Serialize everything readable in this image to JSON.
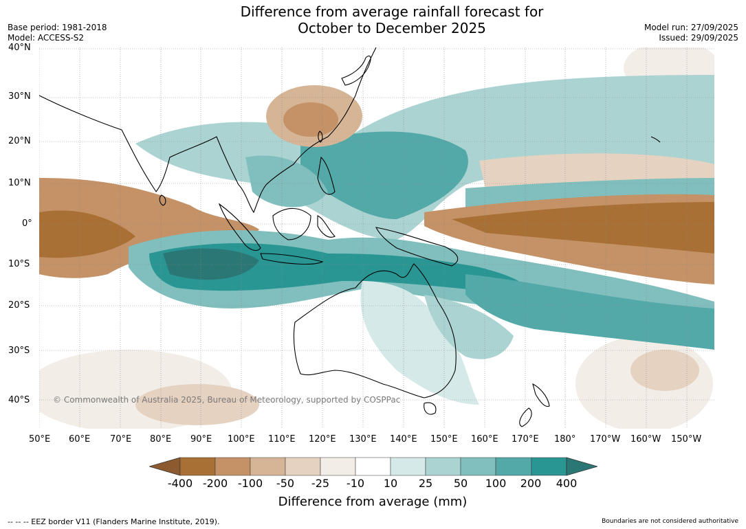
{
  "title": {
    "line1": "Difference from average rainfall forecast for",
    "line2": "October to December 2025"
  },
  "meta": {
    "base_period": "Base period: 1981-2018",
    "model": "Model: ACCESS-S2",
    "model_run": "Model run: 27/09/2025",
    "issued": "Issued: 29/09/2025"
  },
  "map": {
    "copyright": "© Commonwealth of Australia 2025, Bureau of Meteorology, supported by COSPPac",
    "lat_labels": [
      "40°N",
      "30°N",
      "20°N",
      "10°N",
      "0°",
      "10°S",
      "20°S",
      "30°S",
      "40°S"
    ],
    "lon_labels": [
      "50°E",
      "60°E",
      "70°E",
      "80°E",
      "90°E",
      "100°E",
      "110°E",
      "120°E",
      "130°E",
      "140°E",
      "150°E",
      "160°E",
      "170°E",
      "180°",
      "170°W",
      "160°W",
      "150°W"
    ],
    "colors": {
      "dry_extreme": "#8c5a2e",
      "dry_strong": "#a97036",
      "dry_mid": "#c49266",
      "dry_light": "#d5b596",
      "dry_faint": "#e6d2c1",
      "dry_trace": "#f3ede7",
      "neutral": "#ffffff",
      "wet_trace": "#d5e9e8",
      "wet_faint": "#abd3d1",
      "wet_light": "#80bfbd",
      "wet_mid": "#53a9a8",
      "wet_strong": "#2a9694",
      "wet_extreme": "#2b7775",
      "coast": "#000000",
      "border": "#888888"
    }
  },
  "colorbar": {
    "labels": [
      "-400",
      "-200",
      "-100",
      "-50",
      "-25",
      "-10",
      "10",
      "25",
      "50",
      "100",
      "200",
      "400"
    ],
    "title": "Difference from average (mm)"
  },
  "footer": {
    "left": "--  --  -- EEZ border V11 (Flanders Marine Institute, 2019).",
    "right": "Boundaries are not considered authoritative"
  }
}
